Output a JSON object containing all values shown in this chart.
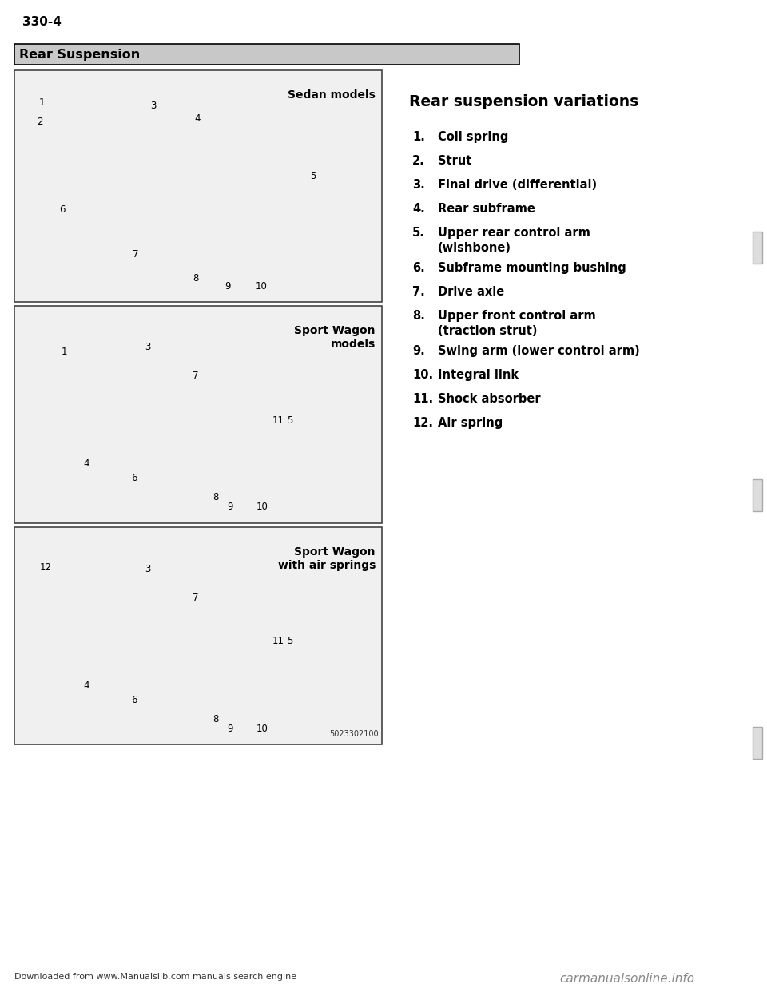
{
  "page_number": "330-4",
  "section_title": "Rear Suspension",
  "right_section_title": "Rear suspension variations",
  "items": [
    {
      "num": "1.",
      "text": "Coil spring"
    },
    {
      "num": "2.",
      "text": "Strut"
    },
    {
      "num": "3.",
      "text": "Final drive (differential)"
    },
    {
      "num": "4.",
      "text": "Rear subframe"
    },
    {
      "num": "5.",
      "text": "Upper rear control arm\n(wishbone)"
    },
    {
      "num": "6.",
      "text": "Subframe mounting bushing"
    },
    {
      "num": "7.",
      "text": "Drive axle"
    },
    {
      "num": "8.",
      "text": "Upper front control arm\n(traction strut)"
    },
    {
      "num": "9.",
      "text": "Swing arm (lower control arm)"
    },
    {
      "num": "10.",
      "text": "Integral link"
    },
    {
      "num": "11.",
      "text": "Shock absorber"
    },
    {
      "num": "12.",
      "text": "Air spring"
    }
  ],
  "panel_titles": [
    "Sedan models",
    "Sport Wagon\nmodels",
    "Sport Wagon\nwith air springs"
  ],
  "footer_left": "Downloaded from ",
  "footer_link": "www.Manualslib.com",
  "footer_right": " manuals search engine",
  "footer_watermark": "carmanualsonline.info",
  "image_code": "5023302100",
  "bg_color": "#ffffff"
}
